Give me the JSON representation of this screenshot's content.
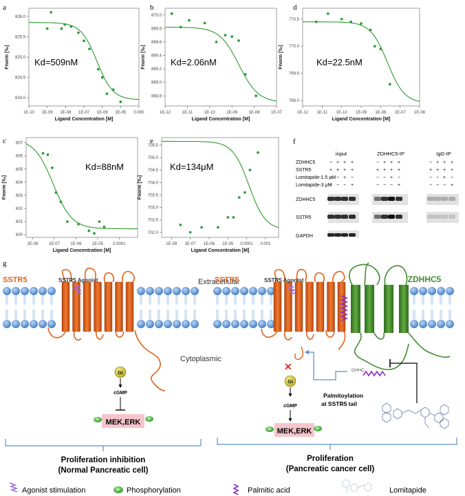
{
  "panels": {
    "a": {
      "letter": "a",
      "kd": "Kd=509nM",
      "xlabel": "Ligand Concentration [M]",
      "ylabel": "Fnorm [‰]",
      "xticks": [
        "1E-10",
        "1E-09",
        "1E-08",
        "1E-07",
        "1E-06",
        "1E-05",
        "0.000"
      ],
      "yticks": [
        "826.0",
        "825.5",
        "825.0",
        "824.5",
        "824.0"
      ]
    },
    "b": {
      "letter": "b",
      "kd": "Kd=2.06nM",
      "xlabel": "Ligand Concentration [M]",
      "ylabel": "Fnorm [‰]",
      "xticks": [
        "1E-12",
        "1E-11",
        "1E-10",
        "1E-09",
        "1E-08",
        "1E-07"
      ],
      "yticks": [
        "870.0",
        "869.8",
        "869.6",
        "869.4",
        "869.2",
        "869.0",
        "868.8"
      ]
    },
    "d": {
      "letter": "d",
      "kd": "Kd=22.5nM",
      "xlabel": "Ligand Concentration [M]",
      "ylabel": "Fnorm [‰]",
      "xticks": [
        "1E-12",
        "1E-11",
        "1E-10",
        "1E-09",
        "1E-08",
        "1E-07",
        "1E-06"
      ],
      "yticks": [
        "770.5",
        "770.0",
        "769.5",
        "769.0"
      ]
    },
    "c": {
      "letter": "c",
      "kd": "Kd=88nM",
      "xlabel": "Ligand Concentration [M]",
      "ylabel": "Fnorm [‰]",
      "xticks": [
        "1E-08",
        "1E-07",
        "1E-06",
        "1E-05",
        "0.0001"
      ],
      "yticks": [
        "607",
        "606",
        "605",
        "604",
        "603",
        "602",
        "601",
        "600"
      ]
    },
    "e": {
      "letter": "e",
      "kd": "Kd=134μM",
      "xlabel": "Ligand Concentration [M]",
      "ylabel": "Fnorm [‰]",
      "xticks": [
        "1E-08",
        "1E-07",
        "1E-06",
        "1E-05",
        "0.0001",
        "0.001"
      ],
      "yticks": [
        "705.5",
        "705.0",
        "704.5",
        "704.0",
        "703.5",
        "703.0",
        "702.5",
        "702.0"
      ]
    }
  },
  "blot": {
    "letter": "f",
    "groups": [
      "input",
      "ZDHHC5-IP",
      "IgG-IP"
    ],
    "rows": [
      {
        "label": "ZDHHC5",
        "input": [
          "−",
          "+",
          "+",
          "+"
        ],
        "zip": [
          "−",
          "+",
          "+",
          "+"
        ],
        "igg": [
          "−",
          "+",
          "+",
          "+"
        ]
      },
      {
        "label": "SSTR5",
        "input": [
          "+",
          "+",
          "+",
          "+"
        ],
        "zip": [
          "+",
          "+",
          "+",
          "+"
        ],
        "igg": [
          "+",
          "+",
          "+",
          "+"
        ]
      },
      {
        "label": "Lomitapide-1.5 μM",
        "input": [
          "−",
          "−",
          "+",
          "−"
        ],
        "zip": [
          "−",
          "−",
          "+",
          "−"
        ],
        "igg": [
          "−",
          "−",
          "+",
          "−"
        ]
      },
      {
        "label": "Lomitapide-3 μM",
        "input": [
          "−",
          "−",
          "−",
          "+"
        ],
        "zip": [
          "−",
          "−",
          "−",
          "+"
        ],
        "igg": [
          "−",
          "−",
          "−",
          "+"
        ]
      }
    ],
    "bands": [
      "ZDHHC5",
      "SSTR5",
      "GAPDH"
    ]
  },
  "diagram": {
    "letter": "g",
    "extracellular": "Extracellular",
    "cytoplasmic": "Cytoplasmic",
    "left": {
      "receptor": "SSTR5",
      "agonist": "SSTR5 Agonist",
      "gi": "Gi",
      "cgmp": "cGMP",
      "p": "P",
      "kinase": "MEK,ERK",
      "outcome": "Proliferation inhibition",
      "sub": "(Normal Pancreatic cell)"
    },
    "right": {
      "receptor": "SSTR5",
      "agonist": "SSTR5 Agonist",
      "zdhhc5": "ZDHHC5",
      "dhhc": "DHHC",
      "gi": "Gi",
      "cgmp": "cGMP",
      "p": "P",
      "kinase": "MEK,ERK",
      "palm": "Palmitoylation",
      "palm2": "at SSTR5 tail",
      "outcome": "Proliferation",
      "sub": "(Pancreatic cancer cell)"
    },
    "legend": {
      "agonist": "Agonist stimulation",
      "p": "P",
      "phos": "Phosphorylation",
      "palmitic": "Palmitic acid",
      "lomitapide": "Lomitapide"
    }
  },
  "chart_data": [
    {
      "type": "scatter",
      "panel": "a",
      "title": "Kd=509nM",
      "xlabel": "Ligand Concentration [M]",
      "ylabel": "Fnorm [‰]",
      "xscale": "log",
      "ylim": [
        823.8,
        826.2
      ],
      "x": [
        1e-09,
        1.6e-09,
        6e-09,
        9e-09,
        2e-08,
        5e-08,
        1e-07,
        2e-07,
        6e-07,
        1e-06,
        1.8e-06,
        4e-06,
        1e-05
      ],
      "y": [
        825.7,
        826.1,
        825.7,
        825.8,
        825.75,
        825.6,
        825.4,
        825.2,
        824.7,
        824.5,
        824.1,
        824.2,
        823.9
      ],
      "fit": {
        "top": 825.85,
        "bottom": 823.95,
        "kd": 5.09e-07
      }
    },
    {
      "type": "scatter",
      "panel": "b",
      "title": "Kd=2.06nM",
      "xlabel": "Ligand Concentration [M]",
      "ylabel": "Fnorm [‰]",
      "xscale": "log",
      "ylim": [
        868.65,
        870.1
      ],
      "x": [
        2e-12,
        5e-12,
        1.2e-11,
        6e-11,
        2e-10,
        5e-10,
        1e-09,
        2e-09,
        4e-09,
        1.2e-08
      ],
      "y": [
        870.02,
        869.82,
        869.92,
        869.88,
        869.6,
        869.7,
        869.68,
        869.62,
        869.12,
        868.8
      ],
      "fit": {
        "top": 869.82,
        "bottom": 868.7,
        "kd": 2.06e-09
      }
    },
    {
      "type": "scatter",
      "panel": "d",
      "title": "Kd=22.5nM",
      "xlabel": "Ligand Concentration [M]",
      "ylabel": "Fnorm [‰]",
      "xscale": "log",
      "ylim": [
        768.9,
        770.7
      ],
      "x": [
        5e-12,
        2e-11,
        1e-10,
        3e-10,
        1e-09,
        3e-09,
        5e-09,
        1e-08,
        3e-08
      ],
      "y": [
        770.45,
        770.6,
        770.5,
        770.45,
        770.42,
        770.3,
        770.0,
        769.95,
        769.3
      ],
      "fit": {
        "top": 770.45,
        "bottom": 768.95,
        "kd": 2.25e-08
      }
    },
    {
      "type": "scatter",
      "panel": "c",
      "title": "Kd=88nM",
      "xlabel": "Ligand Concentration [M]",
      "ylabel": "Fnorm [‰]",
      "xscale": "log",
      "ylim": [
        599.8,
        607.4
      ],
      "x": [
        3e-08,
        5e-08,
        8e-08,
        1.2e-07,
        2e-07,
        4e-07,
        1.3e-06,
        4e-06,
        7e-06,
        1.2e-05,
        2e-05
      ],
      "y": [
        606.2,
        606.1,
        605.1,
        603.2,
        602.5,
        601,
        600.8,
        600.3,
        600.1,
        601,
        600.6
      ],
      "fit": {
        "top": 607.3,
        "bottom": 600.45,
        "kd": 8.8e-08
      }
    },
    {
      "type": "scatter",
      "panel": "e",
      "title": "Kd=134μM",
      "xlabel": "Ligand Concentration [M]",
      "ylabel": "Fnorm [‰]",
      "xscale": "log",
      "ylim": [
        701.8,
        705.8
      ],
      "x": [
        3e-08,
        1e-07,
        4e-07,
        3e-06,
        1e-05,
        2e-05,
        4e-05,
        8e-05,
        0.00015,
        0.0004
      ],
      "y": [
        702.3,
        702.0,
        702.2,
        702.2,
        702.6,
        702.6,
        703.4,
        703.6,
        704.5,
        705.2
      ],
      "fit": {
        "top": 705.65,
        "bottom": 702.1,
        "kd": 0.000134
      }
    }
  ],
  "colors": {
    "green": "#2b9a2b",
    "orange": "#e0621b",
    "zgreen": "#3f8a2e",
    "membrane": "#4a86c8",
    "pink": "#f6c5cc",
    "bracket": "#5a8fcf",
    "dot": "#2e9e3c"
  }
}
